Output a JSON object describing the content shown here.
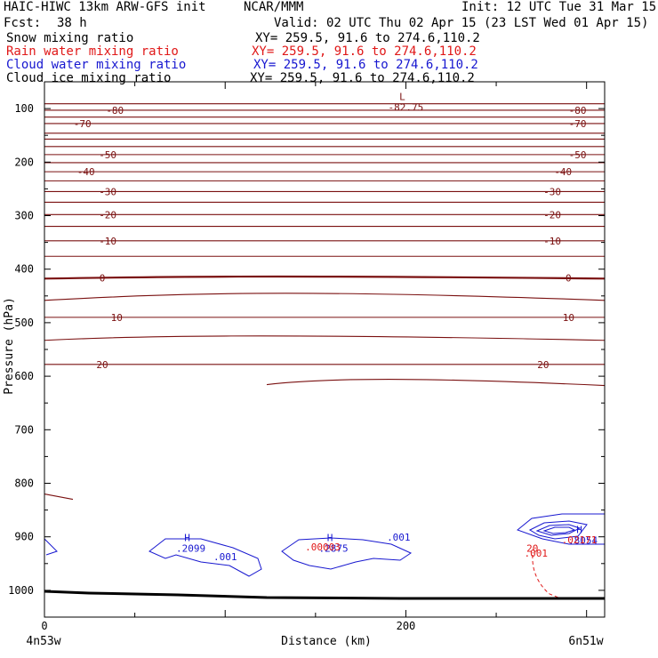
{
  "header": {
    "model": "HAIC-HIWC 13km ARW-GFS init",
    "org": "NCAR/MMM",
    "init": "Init: 12 UTC Tue 31 Mar 15",
    "fcst_label": "Fcst:",
    "fcst_value": "38 h",
    "valid": "Valid: 02 UTC Thu 02 Apr 15 (23 LST Wed 01 Apr 15)",
    "fields": [
      {
        "name": "Snow mixing ratio",
        "xy": "XY= 259.5, 91.6 to 274.6,110.2",
        "color": "#000000"
      },
      {
        "name": "Rain water mixing ratio",
        "xy": "XY= 259.5, 91.6 to 274.6,110.2",
        "color": "#e01818"
      },
      {
        "name": "Cloud water mixing ratio",
        "xy": "XY= 259.5, 91.6 to 274.6,110.2",
        "color": "#1818d0"
      },
      {
        "name": "Cloud ice mixing ratio",
        "xy": "XY= 259.5, 91.6 to 274.6,110.2",
        "color": "#000000"
      }
    ]
  },
  "chart_data": {
    "type": "contour",
    "xlabel": "Distance (km)",
    "ylabel": "Pressure (hPa)",
    "x_ticks": [
      "0",
      "200"
    ],
    "x_tick_values": [
      0,
      200
    ],
    "xlim": [
      0,
      310
    ],
    "y_ticks": [
      "100",
      "200",
      "300",
      "400",
      "500",
      "600",
      "700",
      "800",
      "900",
      "1000"
    ],
    "y_tick_values": [
      100,
      200,
      300,
      400,
      500,
      600,
      700,
      800,
      900,
      1000
    ],
    "ylim": [
      50,
      1050
    ],
    "endpoint_left": "4n53w",
    "endpoint_right": "6n51w",
    "temperature_color": "#7a1010",
    "ground_color": "#000000",
    "temperature_levels": [
      {
        "value": -85,
        "pressure": 91
      },
      {
        "value": -80,
        "pressure": 103,
        "label": "-80",
        "label_x": [
          39,
          295
        ]
      },
      {
        "value": -75,
        "pressure": 116
      },
      {
        "value": -70,
        "pressure": 128,
        "label": "-70",
        "label_x": [
          21,
          295
        ]
      },
      {
        "value": -65,
        "pressure": 146
      },
      {
        "value": -60,
        "pressure": 157
      },
      {
        "value": -55,
        "pressure": 171
      },
      {
        "value": -50,
        "pressure": 186,
        "label": "-50",
        "label_x": [
          35,
          295
        ]
      },
      {
        "value": -45,
        "pressure": 201
      },
      {
        "value": -40,
        "pressure": 218,
        "label": "-40",
        "label_x": [
          23,
          287
        ]
      },
      {
        "value": -35,
        "pressure": 235
      },
      {
        "value": -30,
        "pressure": 255,
        "label": "-30",
        "label_x": [
          35,
          281
        ]
      },
      {
        "value": -25,
        "pressure": 275
      },
      {
        "value": -20,
        "pressure": 298,
        "label": "-20",
        "label_x": [
          35,
          281
        ]
      },
      {
        "value": -15,
        "pressure": 320
      },
      {
        "value": -10,
        "pressure": 347,
        "label": "-10",
        "label_x": [
          35,
          281
        ]
      },
      {
        "value": -5,
        "pressure": 376
      },
      {
        "value": 0,
        "pressure": 416,
        "label": "0",
        "label_x": [
          32,
          290
        ],
        "bold": true
      },
      {
        "value": 5,
        "pressure": 450
      },
      {
        "value": 10,
        "pressure": 490,
        "label": "10",
        "label_x": [
          40,
          290
        ]
      },
      {
        "value": 15,
        "pressure": 523
      },
      {
        "value": 20,
        "pressure": 578,
        "label": "20",
        "label_x": [
          32,
          276
        ]
      },
      {
        "value": 25,
        "pressure": 614
      }
    ],
    "highs": [
      {
        "label": "H",
        "value": ".2099",
        "x": 79,
        "p": 908,
        "color": "#1818d0"
      },
      {
        "label": "H",
        "value": ".2875",
        "x": 158,
        "p": 908,
        "color": "#1818d0"
      },
      {
        "label": "H",
        "value": ".8054",
        "x": 296,
        "p": 893,
        "color": "#1818d0"
      }
    ],
    "lows": [
      {
        "label": "L",
        "value": "-82.75",
        "x": 198,
        "p": 84,
        "color": "#7a1010"
      }
    ],
    "contour_labels": [
      {
        "text": ".001",
        "x": 100,
        "p": 944,
        "color": "#1818d0"
      },
      {
        "text": ".001",
        "x": 196,
        "p": 907,
        "color": "#1818d0"
      },
      {
        "text": ".00003",
        "x": 154,
        "p": 925,
        "color": "#e01818"
      },
      {
        "text": ".02171",
        "x": 296,
        "p": 912,
        "color": "#e01818"
      },
      {
        "text": ".001",
        "x": 272,
        "p": 937,
        "color": "#e01818"
      },
      {
        "text": "20",
        "x": 270,
        "p": 928,
        "color": "#e01818"
      }
    ]
  }
}
